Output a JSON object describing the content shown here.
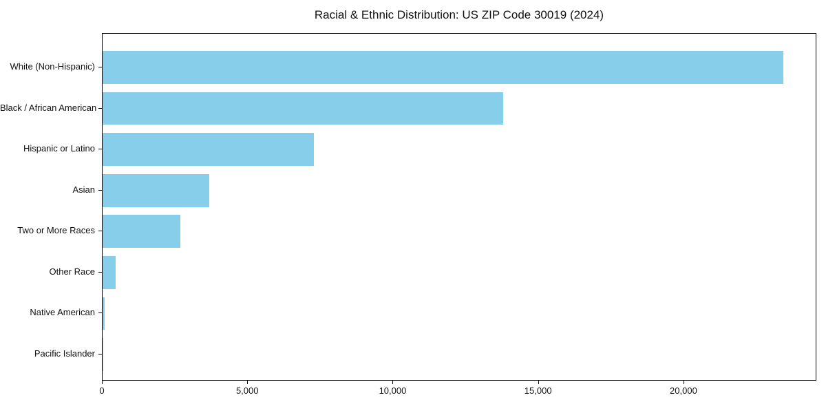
{
  "chart_data": {
    "type": "bar",
    "orientation": "horizontal",
    "title": "Racial & Ethnic Distribution: US ZIP Code 30019 (2024)",
    "categories": [
      "White (Non-Hispanic)",
      "Black / African American",
      "Hispanic or Latino",
      "Asian",
      "Two or More Races",
      "Other Race",
      "Native American",
      "Pacific Islander"
    ],
    "values": [
      23400,
      13780,
      7270,
      3670,
      2680,
      450,
      60,
      15
    ],
    "xlabel": "",
    "ylabel": "",
    "xlim": [
      0,
      24570
    ],
    "x_ticks": [
      0,
      5000,
      10000,
      15000,
      20000
    ],
    "x_tick_labels": [
      "0",
      "5,000",
      "10,000",
      "15,000",
      "20,000"
    ],
    "bar_color": "#87CEEB",
    "spine_color": "#000000",
    "background_color": "#ffffff",
    "grid": false,
    "legend": "none"
  }
}
